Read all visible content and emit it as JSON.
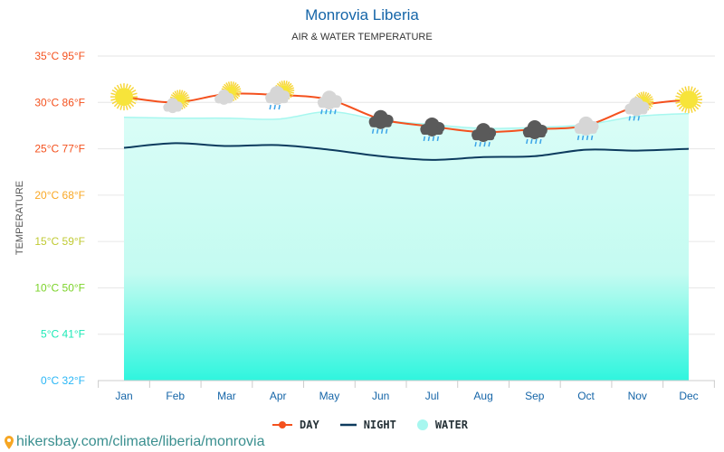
{
  "header": {
    "title": "Monrovia Liberia",
    "subtitle": "AIR & WATER TEMPERATURE"
  },
  "chart_data": {
    "type": "line",
    "title": "Monrovia Liberia",
    "subtitle": "AIR & WATER TEMPERATURE",
    "ylabel": "TEMPERATURE",
    "xlabel": "",
    "ylim": [
      0,
      35
    ],
    "grid": true,
    "legend_position": "bottom",
    "categories": [
      "Jan",
      "Feb",
      "Mar",
      "Apr",
      "May",
      "Jun",
      "Jul",
      "Aug",
      "Sep",
      "Oct",
      "Nov",
      "Dec"
    ],
    "y_ticks": [
      {
        "value": 35,
        "label": "35°C 95°F",
        "color": "#f4511e"
      },
      {
        "value": 30,
        "label": "30°C 86°F",
        "color": "#f4511e"
      },
      {
        "value": 25,
        "label": "25°C 77°F",
        "color": "#f4511e"
      },
      {
        "value": 20,
        "label": "20°C 68°F",
        "color": "#f9a825"
      },
      {
        "value": 15,
        "label": "15°C 59°F",
        "color": "#c0ca33"
      },
      {
        "value": 10,
        "label": "10°C 50°F",
        "color": "#7cd32a"
      },
      {
        "value": 5,
        "label": "5°C 41°F",
        "color": "#1de9b6"
      },
      {
        "value": 0,
        "label": "0°C 32°F",
        "color": "#29b6f6"
      }
    ],
    "series": [
      {
        "name": "DAY",
        "color": "#f4511e",
        "values": [
          30.6,
          30.0,
          30.9,
          30.8,
          30.3,
          28.2,
          27.4,
          26.8,
          27.1,
          27.5,
          29.6,
          30.3
        ]
      },
      {
        "name": "NIGHT",
        "color": "#0d3b5e",
        "values": [
          25.1,
          25.6,
          25.3,
          25.4,
          24.9,
          24.2,
          23.8,
          24.1,
          24.2,
          24.9,
          24.8,
          25.0
        ]
      },
      {
        "name": "WATER",
        "color": "#a7f7ef",
        "values": [
          28.4,
          28.3,
          28.3,
          28.2,
          29.0,
          28.1,
          27.6,
          27.2,
          27.3,
          27.6,
          28.5,
          28.8
        ]
      }
    ],
    "weather_icons": [
      "sun",
      "partly-cloudy",
      "partly-cloudy",
      "sun-cloud-rain",
      "cloud-rain",
      "storm-rain",
      "storm-rain",
      "storm-rain",
      "storm-rain",
      "cloud-rain",
      "sun-cloud-rain",
      "sun"
    ]
  },
  "legend": {
    "day": "DAY",
    "night": "NIGHT",
    "water": "WATER"
  },
  "footer": {
    "url": "hikersbay.com/climate/liberia/monrovia"
  }
}
